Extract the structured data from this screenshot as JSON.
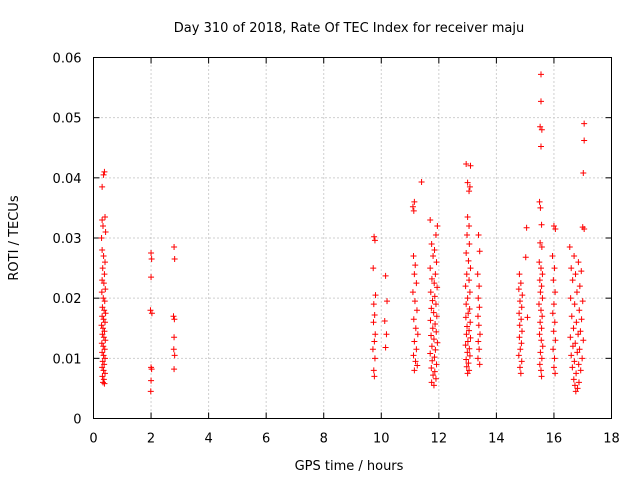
{
  "colors": {
    "series": "#ff0000",
    "background": "#ffffff",
    "grid": "#a0a0a0",
    "frame": "#000000"
  },
  "chart_data": {
    "type": "scatter",
    "title": "Day 310 of 2018, Rate Of TEC Index for receiver maju",
    "xlabel": "GPS time / hours",
    "ylabel": "ROTI / TECUs",
    "xlim": [
      0,
      18
    ],
    "ylim": [
      0,
      0.06
    ],
    "grid": true,
    "marker": "plus",
    "x_ticks": [
      0,
      2,
      4,
      6,
      8,
      10,
      12,
      14,
      16,
      18
    ],
    "x_tick_labels": [
      "0",
      "2",
      "4",
      "6",
      "8",
      "10",
      "12",
      "14",
      "16",
      "18"
    ],
    "y_ticks": [
      0,
      0.01,
      0.02,
      0.03,
      0.04,
      0.05,
      0.06
    ],
    "y_tick_labels": [
      "0",
      "0.01",
      "0.02",
      "0.03",
      "0.04",
      "0.05",
      "0.06"
    ],
    "series": [
      {
        "name": "maju",
        "points": [
          [
            0.3,
            0.0385
          ],
          [
            0.35,
            0.0405
          ],
          [
            0.38,
            0.041
          ],
          [
            0.3,
            0.033
          ],
          [
            0.33,
            0.032
          ],
          [
            0.4,
            0.0335
          ],
          [
            0.28,
            0.03
          ],
          [
            0.42,
            0.031
          ],
          [
            0.3,
            0.028
          ],
          [
            0.35,
            0.027
          ],
          [
            0.4,
            0.026
          ],
          [
            0.32,
            0.025
          ],
          [
            0.38,
            0.024
          ],
          [
            0.3,
            0.023
          ],
          [
            0.36,
            0.0225
          ],
          [
            0.41,
            0.0215
          ],
          [
            0.29,
            0.021
          ],
          [
            0.34,
            0.02
          ],
          [
            0.39,
            0.0195
          ],
          [
            0.31,
            0.0185
          ],
          [
            0.37,
            0.018
          ],
          [
            0.42,
            0.0175
          ],
          [
            0.3,
            0.017
          ],
          [
            0.35,
            0.0165
          ],
          [
            0.4,
            0.016
          ],
          [
            0.28,
            0.0155
          ],
          [
            0.33,
            0.015
          ],
          [
            0.38,
            0.0145
          ],
          [
            0.31,
            0.014
          ],
          [
            0.36,
            0.0135
          ],
          [
            0.41,
            0.013
          ],
          [
            0.29,
            0.0125
          ],
          [
            0.34,
            0.012
          ],
          [
            0.39,
            0.0115
          ],
          [
            0.3,
            0.011
          ],
          [
            0.35,
            0.0105
          ],
          [
            0.4,
            0.01
          ],
          [
            0.32,
            0.0095
          ],
          [
            0.37,
            0.009
          ],
          [
            0.3,
            0.0085
          ],
          [
            0.35,
            0.008
          ],
          [
            0.4,
            0.0075
          ],
          [
            0.31,
            0.007
          ],
          [
            0.36,
            0.0065
          ],
          [
            0.33,
            0.006
          ],
          [
            0.38,
            0.0058
          ],
          [
            2.0,
            0.0275
          ],
          [
            2.02,
            0.0265
          ],
          [
            2.0,
            0.0235
          ],
          [
            1.98,
            0.018
          ],
          [
            2.03,
            0.0175
          ],
          [
            2.0,
            0.0085
          ],
          [
            2.02,
            0.0082
          ],
          [
            2.0,
            0.0063
          ],
          [
            1.99,
            0.0045
          ],
          [
            2.8,
            0.0285
          ],
          [
            2.82,
            0.0265
          ],
          [
            2.78,
            0.017
          ],
          [
            2.81,
            0.0165
          ],
          [
            2.8,
            0.0135
          ],
          [
            2.79,
            0.0115
          ],
          [
            2.82,
            0.0105
          ],
          [
            2.8,
            0.0082
          ],
          [
            9.75,
            0.0302
          ],
          [
            9.78,
            0.0296
          ],
          [
            9.72,
            0.025
          ],
          [
            9.8,
            0.0205
          ],
          [
            9.74,
            0.019
          ],
          [
            9.77,
            0.0172
          ],
          [
            9.73,
            0.016
          ],
          [
            9.79,
            0.014
          ],
          [
            9.76,
            0.0128
          ],
          [
            9.71,
            0.0115
          ],
          [
            9.78,
            0.01
          ],
          [
            9.74,
            0.008
          ],
          [
            9.76,
            0.007
          ],
          [
            10.15,
            0.0237
          ],
          [
            10.2,
            0.0195
          ],
          [
            10.12,
            0.0162
          ],
          [
            10.18,
            0.014
          ],
          [
            10.15,
            0.0118
          ],
          [
            11.1,
            0.0352
          ],
          [
            11.15,
            0.036
          ],
          [
            11.13,
            0.0345
          ],
          [
            11.4,
            0.0393
          ],
          [
            11.12,
            0.027
          ],
          [
            11.18,
            0.0255
          ],
          [
            11.15,
            0.024
          ],
          [
            11.22,
            0.0225
          ],
          [
            11.1,
            0.021
          ],
          [
            11.17,
            0.0195
          ],
          [
            11.24,
            0.018
          ],
          [
            11.13,
            0.0165
          ],
          [
            11.2,
            0.015
          ],
          [
            11.27,
            0.014
          ],
          [
            11.15,
            0.0128
          ],
          [
            11.22,
            0.0115
          ],
          [
            11.12,
            0.0105
          ],
          [
            11.19,
            0.0095
          ],
          [
            11.25,
            0.0088
          ],
          [
            11.15,
            0.008
          ],
          [
            11.7,
            0.033
          ],
          [
            11.95,
            0.032
          ],
          [
            11.9,
            0.0305
          ],
          [
            11.75,
            0.029
          ],
          [
            11.85,
            0.028
          ],
          [
            11.8,
            0.027
          ],
          [
            11.92,
            0.026
          ],
          [
            11.7,
            0.025
          ],
          [
            11.88,
            0.024
          ],
          [
            11.76,
            0.0232
          ],
          [
            11.84,
            0.0225
          ],
          [
            11.94,
            0.0218
          ],
          [
            11.72,
            0.021
          ],
          [
            11.86,
            0.0203
          ],
          [
            11.78,
            0.0196
          ],
          [
            11.9,
            0.019
          ],
          [
            11.74,
            0.0183
          ],
          [
            11.82,
            0.0176
          ],
          [
            11.93,
            0.017
          ],
          [
            11.71,
            0.0163
          ],
          [
            11.87,
            0.0157
          ],
          [
            11.79,
            0.015
          ],
          [
            11.91,
            0.0144
          ],
          [
            11.73,
            0.0138
          ],
          [
            11.83,
            0.0132
          ],
          [
            11.95,
            0.0126
          ],
          [
            11.76,
            0.012
          ],
          [
            11.88,
            0.0114
          ],
          [
            11.7,
            0.0108
          ],
          [
            11.85,
            0.0102
          ],
          [
            11.77,
            0.0096
          ],
          [
            11.92,
            0.009
          ],
          [
            11.74,
            0.0084
          ],
          [
            11.86,
            0.0078
          ],
          [
            11.8,
            0.0072
          ],
          [
            11.9,
            0.0066
          ],
          [
            11.75,
            0.006
          ],
          [
            11.83,
            0.0055
          ],
          [
            12.95,
            0.0423
          ],
          [
            13.1,
            0.042
          ],
          [
            13.0,
            0.0392
          ],
          [
            13.08,
            0.0385
          ],
          [
            13.05,
            0.0378
          ],
          [
            13.0,
            0.0335
          ],
          [
            13.05,
            0.032
          ],
          [
            12.98,
            0.0305
          ],
          [
            13.06,
            0.029
          ],
          [
            12.95,
            0.0275
          ],
          [
            13.03,
            0.0262
          ],
          [
            13.1,
            0.025
          ],
          [
            12.97,
            0.024
          ],
          [
            13.05,
            0.023
          ],
          [
            12.93,
            0.022
          ],
          [
            13.08,
            0.021
          ],
          [
            13.0,
            0.02
          ],
          [
            12.95,
            0.019
          ],
          [
            13.07,
            0.0182
          ],
          [
            13.02,
            0.0175
          ],
          [
            12.94,
            0.0168
          ],
          [
            13.09,
            0.016
          ],
          [
            12.98,
            0.0153
          ],
          [
            13.05,
            0.0146
          ],
          [
            12.96,
            0.014
          ],
          [
            13.1,
            0.0134
          ],
          [
            13.01,
            0.0128
          ],
          [
            12.93,
            0.0122
          ],
          [
            13.06,
            0.0116
          ],
          [
            12.99,
            0.011
          ],
          [
            13.08,
            0.0104
          ],
          [
            12.95,
            0.0098
          ],
          [
            13.03,
            0.0092
          ],
          [
            12.97,
            0.0086
          ],
          [
            13.05,
            0.008
          ],
          [
            13.0,
            0.0075
          ],
          [
            13.38,
            0.0305
          ],
          [
            13.42,
            0.0278
          ],
          [
            13.35,
            0.024
          ],
          [
            13.4,
            0.022
          ],
          [
            13.37,
            0.02
          ],
          [
            13.41,
            0.0185
          ],
          [
            13.36,
            0.017
          ],
          [
            13.39,
            0.0155
          ],
          [
            13.43,
            0.014
          ],
          [
            13.37,
            0.0128
          ],
          [
            13.4,
            0.0115
          ],
          [
            13.36,
            0.01
          ],
          [
            13.42,
            0.009
          ],
          [
            14.8,
            0.024
          ],
          [
            14.85,
            0.0225
          ],
          [
            14.78,
            0.0215
          ],
          [
            14.9,
            0.0205
          ],
          [
            14.82,
            0.0195
          ],
          [
            14.88,
            0.0185
          ],
          [
            14.79,
            0.0175
          ],
          [
            14.86,
            0.0165
          ],
          [
            14.81,
            0.0155
          ],
          [
            14.89,
            0.0145
          ],
          [
            14.8,
            0.0135
          ],
          [
            14.87,
            0.0125
          ],
          [
            14.83,
            0.0115
          ],
          [
            14.78,
            0.0105
          ],
          [
            14.88,
            0.0095
          ],
          [
            14.82,
            0.0085
          ],
          [
            14.85,
            0.0075
          ],
          [
            15.05,
            0.0317
          ],
          [
            15.02,
            0.0268
          ],
          [
            15.08,
            0.0168
          ],
          [
            15.55,
            0.0572
          ],
          [
            15.55,
            0.0527
          ],
          [
            15.52,
            0.0485
          ],
          [
            15.58,
            0.048
          ],
          [
            15.55,
            0.0452
          ],
          [
            15.5,
            0.036
          ],
          [
            15.53,
            0.035
          ],
          [
            15.57,
            0.0322
          ],
          [
            15.52,
            0.0292
          ],
          [
            15.58,
            0.0285
          ],
          [
            15.49,
            0.026
          ],
          [
            15.55,
            0.025
          ],
          [
            15.6,
            0.024
          ],
          [
            15.51,
            0.023
          ],
          [
            15.57,
            0.022
          ],
          [
            15.53,
            0.021
          ],
          [
            15.6,
            0.02
          ],
          [
            15.48,
            0.019
          ],
          [
            15.55,
            0.018
          ],
          [
            15.59,
            0.017
          ],
          [
            15.52,
            0.016
          ],
          [
            15.57,
            0.015
          ],
          [
            15.5,
            0.014
          ],
          [
            15.56,
            0.013
          ],
          [
            15.61,
            0.012
          ],
          [
            15.53,
            0.011
          ],
          [
            15.58,
            0.01
          ],
          [
            15.51,
            0.009
          ],
          [
            15.55,
            0.008
          ],
          [
            15.57,
            0.007
          ],
          [
            16.0,
            0.032
          ],
          [
            16.05,
            0.0315
          ],
          [
            15.95,
            0.027
          ],
          [
            16.02,
            0.025
          ],
          [
            15.98,
            0.023
          ],
          [
            16.04,
            0.021
          ],
          [
            16.0,
            0.019
          ],
          [
            15.96,
            0.0175
          ],
          [
            16.03,
            0.016
          ],
          [
            15.99,
            0.0145
          ],
          [
            16.05,
            0.013
          ],
          [
            15.97,
            0.0115
          ],
          [
            16.02,
            0.01
          ],
          [
            16.0,
            0.0085
          ],
          [
            16.04,
            0.0075
          ],
          [
            16.55,
            0.0285
          ],
          [
            16.7,
            0.027
          ],
          [
            16.85,
            0.026
          ],
          [
            16.6,
            0.025
          ],
          [
            16.95,
            0.0245
          ],
          [
            16.75,
            0.024
          ],
          [
            16.65,
            0.023
          ],
          [
            16.9,
            0.022
          ],
          [
            16.8,
            0.021
          ],
          [
            16.58,
            0.02
          ],
          [
            17.0,
            0.0195
          ],
          [
            16.72,
            0.019
          ],
          [
            16.88,
            0.018
          ],
          [
            16.62,
            0.017
          ],
          [
            16.96,
            0.0165
          ],
          [
            16.78,
            0.016
          ],
          [
            16.68,
            0.015
          ],
          [
            16.92,
            0.0145
          ],
          [
            16.84,
            0.014
          ],
          [
            16.57,
            0.0135
          ],
          [
            17.02,
            0.013
          ],
          [
            16.74,
            0.0125
          ],
          [
            16.66,
            0.012
          ],
          [
            16.89,
            0.0115
          ],
          [
            16.81,
            0.011
          ],
          [
            16.6,
            0.0105
          ],
          [
            16.98,
            0.01
          ],
          [
            16.71,
            0.0095
          ],
          [
            16.86,
            0.009
          ],
          [
            16.64,
            0.0085
          ],
          [
            16.93,
            0.008
          ],
          [
            16.77,
            0.0075
          ],
          [
            16.69,
            0.0065
          ],
          [
            16.87,
            0.006
          ],
          [
            16.73,
            0.0055
          ],
          [
            16.82,
            0.005
          ],
          [
            16.76,
            0.0045
          ],
          [
            17.05,
            0.049
          ],
          [
            17.05,
            0.0462
          ],
          [
            17.02,
            0.0408
          ],
          [
            17.0,
            0.0318
          ],
          [
            17.05,
            0.0315
          ]
        ]
      }
    ]
  }
}
